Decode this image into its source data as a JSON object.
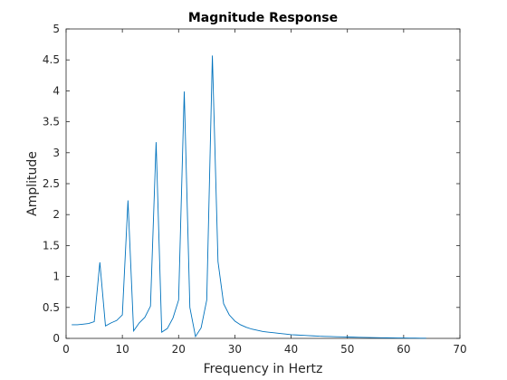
{
  "chart_data": {
    "type": "line",
    "title": "Magnitude Response",
    "xlabel": "Frequency in Hertz",
    "ylabel": "Amplitude",
    "xlim": [
      0,
      70
    ],
    "ylim": [
      0,
      5
    ],
    "xticks": [
      0,
      10,
      20,
      30,
      40,
      50,
      60,
      70
    ],
    "yticks": [
      0,
      0.5,
      1,
      1.5,
      2,
      2.5,
      3,
      3.5,
      4,
      4.5,
      5
    ],
    "xtick_labels": [
      "0",
      "10",
      "20",
      "30",
      "40",
      "50",
      "60",
      "70"
    ],
    "ytick_labels": [
      "0",
      "0.5",
      "1",
      "1.5",
      "2",
      "2.5",
      "3",
      "3.5",
      "4",
      "4.5",
      "5"
    ],
    "grid": false,
    "line_color": "#0072BD",
    "axis_color": "#262626",
    "series": [
      {
        "x": [
          1,
          2,
          3,
          4,
          5,
          6,
          7,
          8,
          9,
          10,
          11,
          12,
          13,
          14,
          15,
          16,
          17,
          18,
          19,
          20,
          21,
          22,
          23,
          24,
          25,
          26,
          27,
          28,
          29,
          30,
          31,
          32,
          33,
          34,
          35,
          36,
          37,
          38,
          39,
          40,
          41,
          42,
          43,
          44,
          45,
          46,
          47,
          48,
          49,
          50,
          51,
          52,
          53,
          54,
          55,
          56,
          57,
          58,
          59,
          60,
          61,
          62,
          63,
          64
        ],
        "y": [
          0.22,
          0.22,
          0.23,
          0.24,
          0.27,
          1.23,
          0.2,
          0.25,
          0.29,
          0.38,
          2.23,
          0.12,
          0.25,
          0.34,
          0.52,
          3.17,
          0.1,
          0.16,
          0.33,
          0.62,
          3.99,
          0.5,
          0.03,
          0.17,
          0.62,
          4.57,
          1.24,
          0.56,
          0.38,
          0.28,
          0.22,
          0.18,
          0.15,
          0.13,
          0.11,
          0.1,
          0.09,
          0.08,
          0.07,
          0.06,
          0.055,
          0.05,
          0.045,
          0.04,
          0.035,
          0.032,
          0.03,
          0.027,
          0.025,
          0.022,
          0.02,
          0.018,
          0.016,
          0.014,
          0.012,
          0.01,
          0.009,
          0.008,
          0.007,
          0.006,
          0.005,
          0.004,
          0.003,
          0.002
        ]
      }
    ]
  }
}
